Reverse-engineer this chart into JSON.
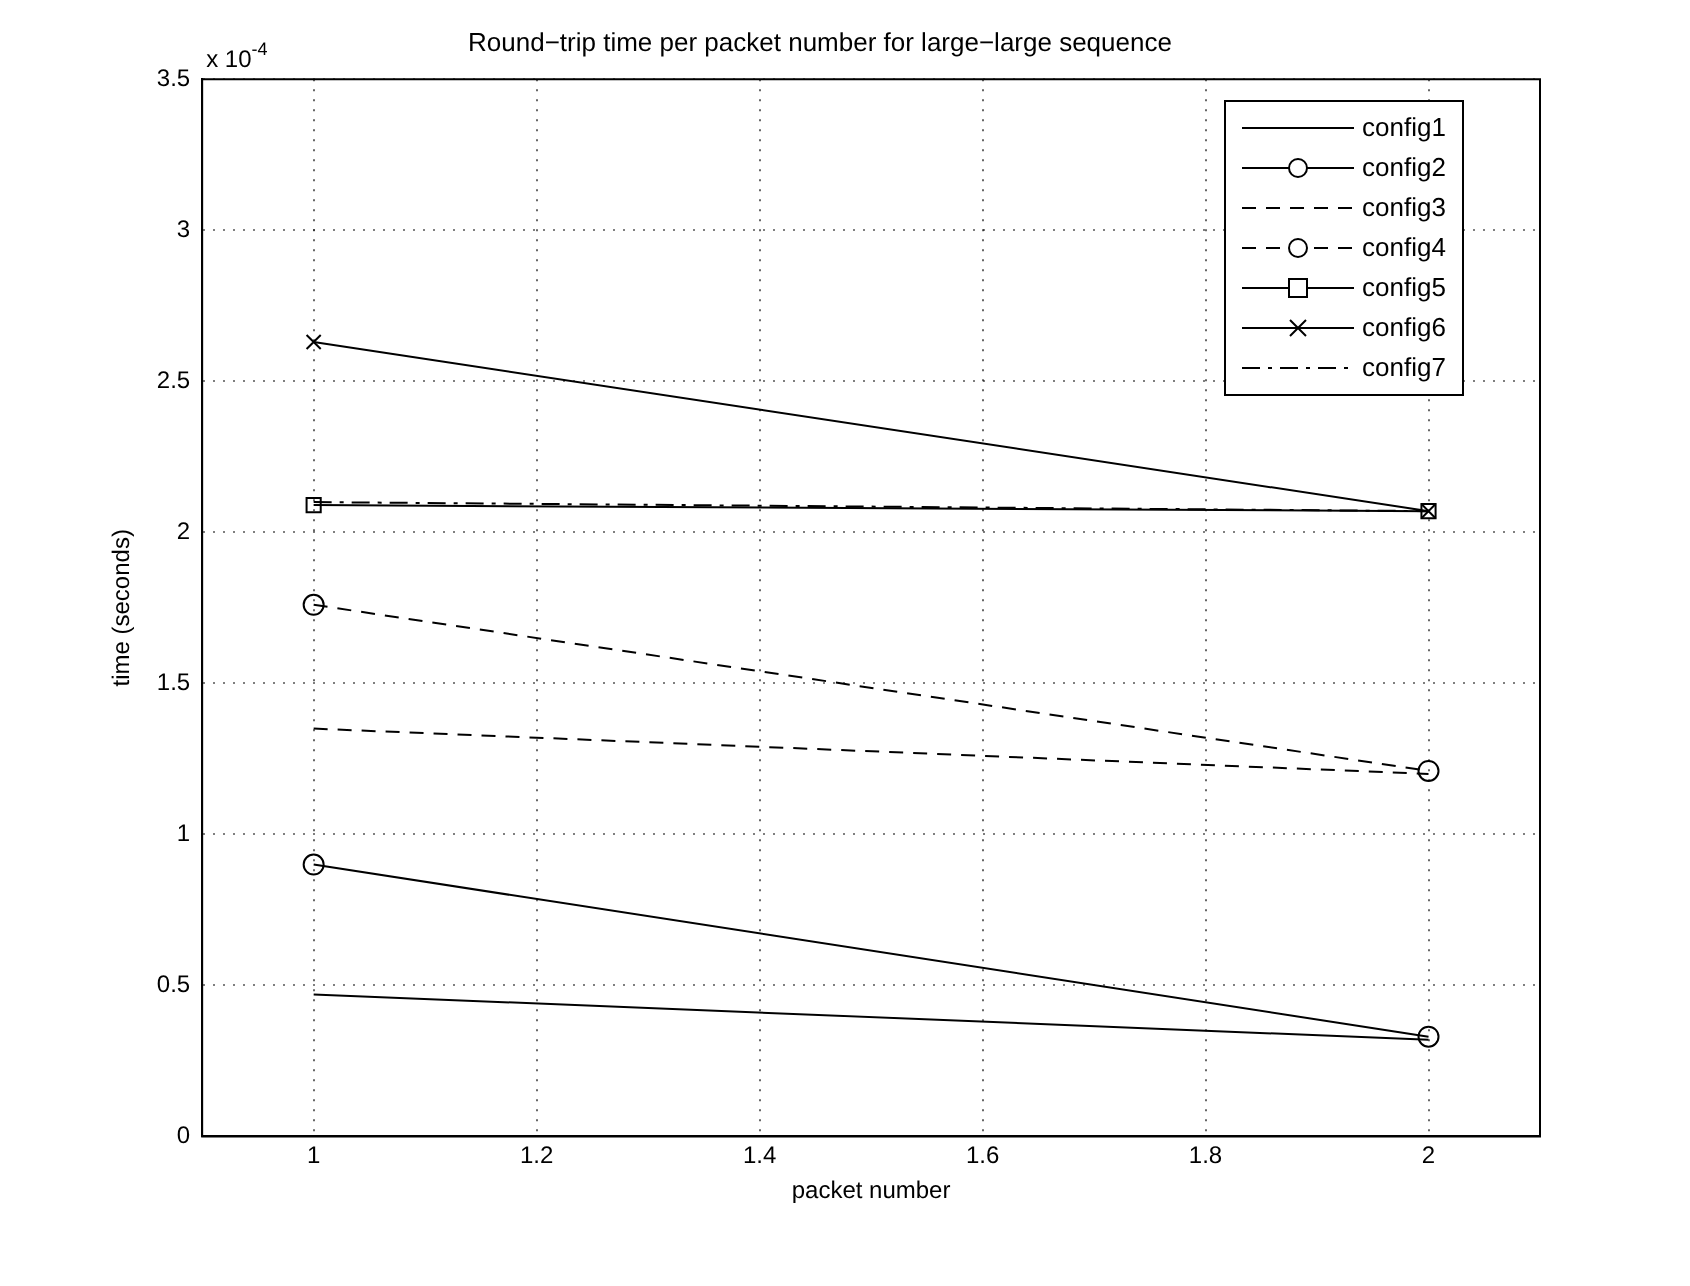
{
  "chart_data": {
    "type": "line",
    "title": "Round−trip time per packet number for large−large sequence",
    "xlabel": "packet number",
    "ylabel": "time (seconds)",
    "annotations": [
      "x 10$^{-4}$"
    ],
    "x": [
      1,
      2
    ],
    "xlim": [
      0.9,
      2.1
    ],
    "xticks": [
      1,
      1.2,
      1.4,
      1.6,
      1.8,
      2
    ],
    "ylim": [
      0,
      3.5
    ],
    "yticks": [
      0,
      0.5,
      1,
      1.5,
      2,
      2.5,
      3,
      3.5
    ],
    "grid": true,
    "legend": "top right",
    "series": [
      {
        "name": "config1",
        "color": "#000000",
        "values": [
          0.47,
          0.32
        ],
        "line_style": "solid",
        "marker": "none"
      },
      {
        "name": "config2",
        "color": "#000000",
        "values": [
          0.9,
          0.33
        ],
        "line_style": "solid",
        "marker": "circle"
      },
      {
        "name": "config3",
        "color": "#000000",
        "values": [
          1.35,
          1.2
        ],
        "line_style": "dashed",
        "marker": "none"
      },
      {
        "name": "config4",
        "color": "#000000",
        "values": [
          1.76,
          1.21
        ],
        "line_style": "dashed",
        "marker": "circle"
      },
      {
        "name": "config5",
        "color": "#000000",
        "values": [
          2.09,
          2.07
        ],
        "line_style": "solid",
        "marker": "square"
      },
      {
        "name": "config6",
        "color": "#000000",
        "values": [
          2.63,
          2.07
        ],
        "line_style": "solid",
        "marker": "cross"
      },
      {
        "name": "config7",
        "color": "#000000",
        "values": [
          2.1,
          2.07
        ],
        "line_style": "dashdot",
        "marker": "none"
      }
    ]
  }
}
